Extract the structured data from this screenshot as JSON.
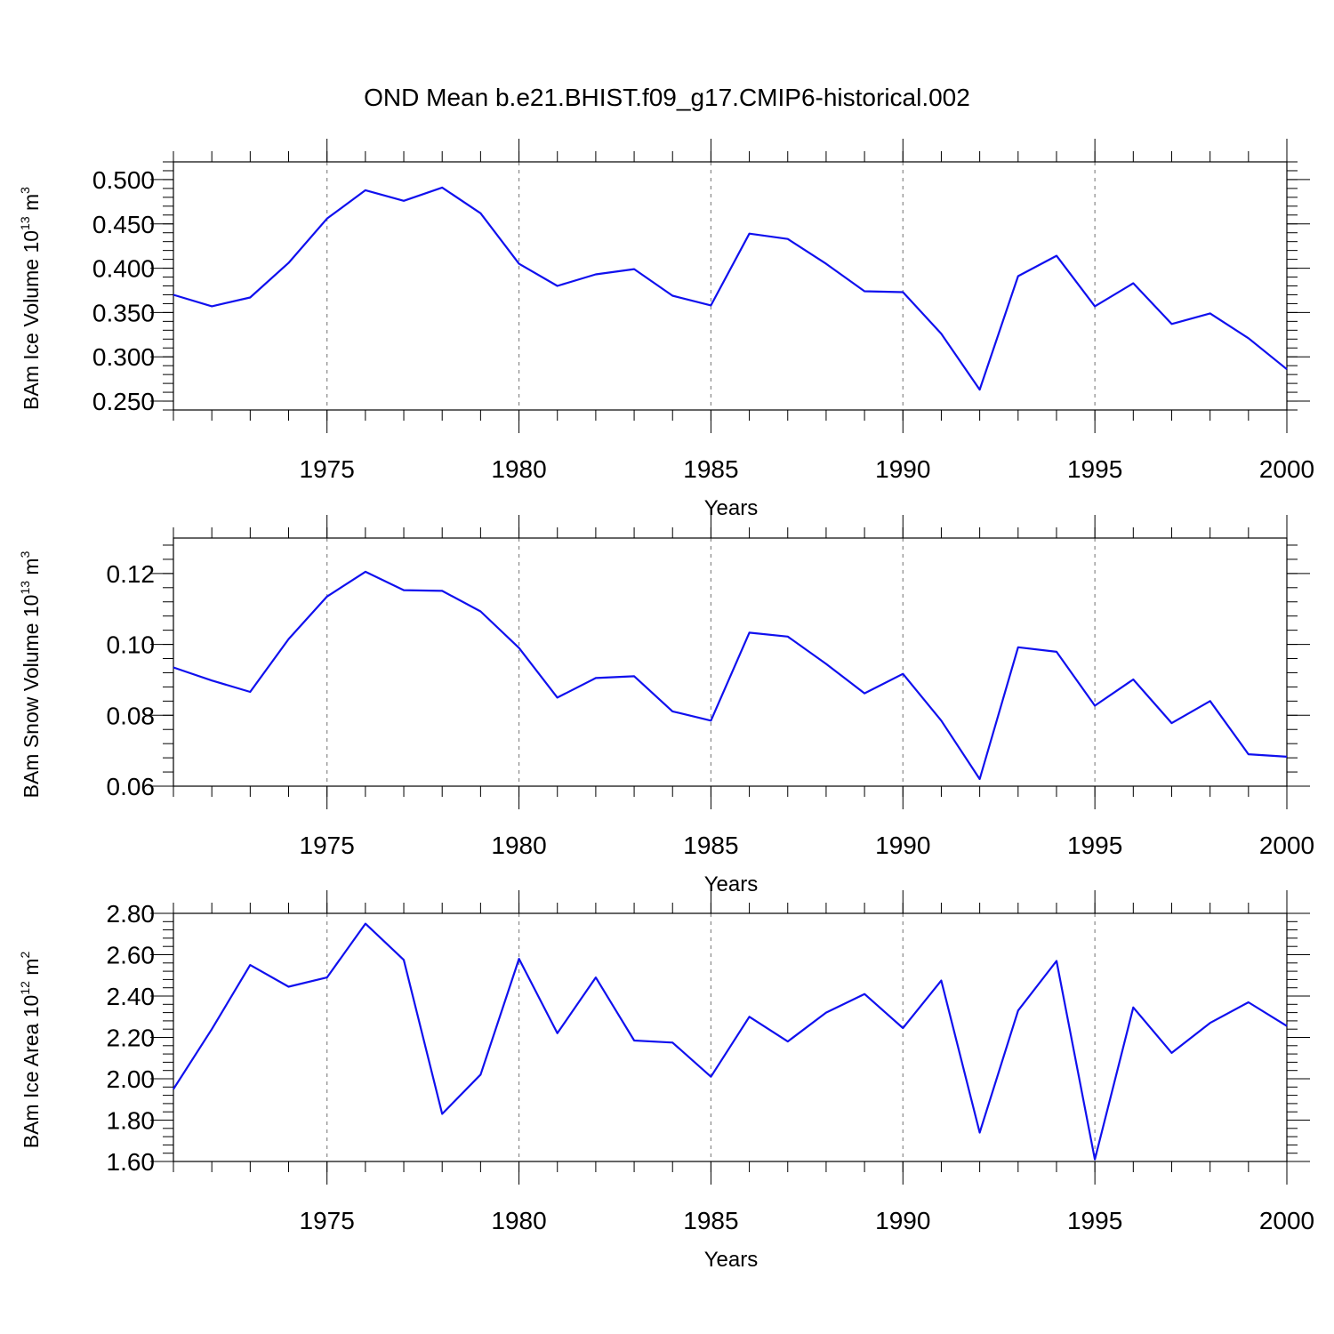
{
  "title": "OND Mean b.e21.BHIST.f09_g17.CMIP6-historical.002",
  "chart_data": [
    {
      "type": "line",
      "ylabel": {
        "main": "BAm Ice Volume 10",
        "exp": "13",
        "unit": " m",
        "unit_exp": "3"
      },
      "xlabel": "Years",
      "xlim": [
        1971,
        2000
      ],
      "xticks": [
        "1975",
        "1980",
        "1985",
        "1990",
        "1995",
        "2000"
      ],
      "ylim": [
        0.24,
        0.52
      ],
      "yticks": [
        "0.250",
        "0.300",
        "0.350",
        "0.400",
        "0.450",
        "0.500"
      ],
      "grid": "vertical-dashed",
      "x": [
        1971,
        1972,
        1973,
        1974,
        1975,
        1976,
        1977,
        1978,
        1979,
        1980,
        1981,
        1982,
        1983,
        1984,
        1985,
        1986,
        1987,
        1988,
        1989,
        1990,
        1991,
        1992,
        1993,
        1994,
        1995,
        1996,
        1997,
        1998,
        1999,
        2000
      ],
      "series": [
        {
          "values": [
            0.37,
            0.357,
            0.367,
            0.406,
            0.456,
            0.488,
            0.476,
            0.491,
            0.462,
            0.405,
            0.38,
            0.393,
            0.399,
            0.369,
            0.358,
            0.439,
            0.433,
            0.405,
            0.374,
            0.373,
            0.326,
            0.263,
            0.391,
            0.414,
            0.357,
            0.383,
            0.337,
            0.349,
            0.321,
            0.286
          ],
          "color": "#1010ee"
        }
      ]
    },
    {
      "type": "line",
      "ylabel": {
        "main": "BAm Snow Volume 10",
        "exp": "13",
        "unit": " m",
        "unit_exp": "3"
      },
      "xlabel": "Years",
      "xlim": [
        1971,
        2000
      ],
      "xticks": [
        "1975",
        "1980",
        "1985",
        "1990",
        "1995",
        "2000"
      ],
      "ylim": [
        0.06,
        0.13
      ],
      "yticks": [
        "0.06",
        "0.08",
        "0.10",
        "0.12"
      ],
      "grid": "vertical-dashed",
      "x": [
        1971,
        1972,
        1973,
        1974,
        1975,
        1976,
        1977,
        1978,
        1979,
        1980,
        1981,
        1982,
        1983,
        1984,
        1985,
        1986,
        1987,
        1988,
        1989,
        1990,
        1991,
        1992,
        1993,
        1994,
        1995,
        1996,
        1997,
        1998,
        1999,
        2000
      ],
      "series": [
        {
          "values": [
            0.0935,
            0.0898,
            0.0866,
            0.1015,
            0.1135,
            0.1205,
            0.1153,
            0.1151,
            0.1093,
            0.099,
            0.085,
            0.0905,
            0.091,
            0.0811,
            0.0785,
            0.1033,
            0.1022,
            0.0945,
            0.0862,
            0.0917,
            0.0785,
            0.062,
            0.0992,
            0.0979,
            0.0827,
            0.0901,
            0.0778,
            0.084,
            0.069,
            0.0683
          ],
          "color": "#1010ee"
        }
      ]
    },
    {
      "type": "line",
      "ylabel": {
        "main": "BAm Ice Area 10",
        "exp": "12",
        "unit": " m",
        "unit_exp": "2"
      },
      "xlabel": "Years",
      "xlim": [
        1971,
        2000
      ],
      "xticks": [
        "1975",
        "1980",
        "1985",
        "1990",
        "1995",
        "2000"
      ],
      "ylim": [
        1.6,
        2.8
      ],
      "yticks": [
        "1.60",
        "1.80",
        "2.00",
        "2.20",
        "2.40",
        "2.60",
        "2.80"
      ],
      "grid": "vertical-dashed",
      "x": [
        1971,
        1972,
        1973,
        1974,
        1975,
        1976,
        1977,
        1978,
        1979,
        1980,
        1981,
        1982,
        1983,
        1984,
        1985,
        1986,
        1987,
        1988,
        1989,
        1990,
        1991,
        1992,
        1993,
        1994,
        1995,
        1996,
        1997,
        1998,
        1999,
        2000
      ],
      "series": [
        {
          "values": [
            1.95,
            2.24,
            2.55,
            2.445,
            2.49,
            2.75,
            2.575,
            1.83,
            2.02,
            2.58,
            2.22,
            2.49,
            2.185,
            2.175,
            2.01,
            2.3,
            2.18,
            2.32,
            2.41,
            2.245,
            2.475,
            1.74,
            2.33,
            2.57,
            1.61,
            2.345,
            2.125,
            2.27,
            2.37,
            2.255
          ],
          "color": "#1010ee"
        }
      ]
    }
  ]
}
